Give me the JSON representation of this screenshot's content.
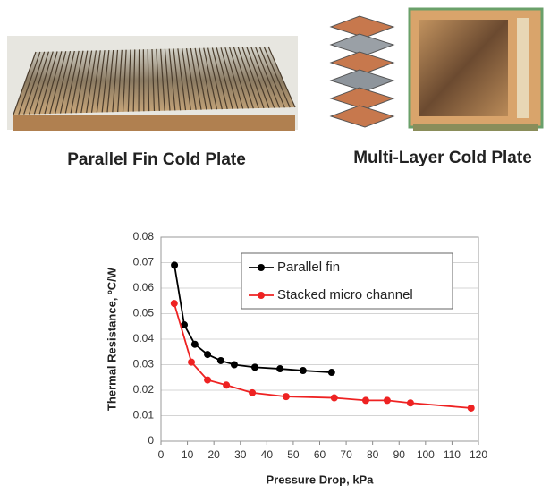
{
  "figures": [
    {
      "caption": "Parallel Fin Cold Plate"
    },
    {
      "caption": "Multi-Layer Cold Plate"
    }
  ],
  "chart_data": {
    "type": "line",
    "xlabel": "Pressure Drop, kPa",
    "ylabel": "Thermal Resistance, ºC/W",
    "xlim": [
      0,
      120
    ],
    "xticks": [
      0,
      10,
      20,
      30,
      40,
      50,
      60,
      70,
      80,
      90,
      100,
      110,
      120
    ],
    "ylim": [
      0,
      0.08
    ],
    "yticks": [
      0,
      0.01,
      0.02,
      0.03,
      0.04,
      0.05,
      0.06,
      0.07,
      0.08
    ],
    "grid": true,
    "legend": "top-right",
    "series": [
      {
        "name": "Parallel fin",
        "color": "#000000",
        "x": [
          5.1,
          8.8,
          12.8,
          17.6,
          22.6,
          27.7,
          35.5,
          45,
          53.7,
          64.5
        ],
        "values": [
          0.069,
          0.0456,
          0.038,
          0.034,
          0.0316,
          0.03,
          0.029,
          0.0284,
          0.0277,
          0.027
        ]
      },
      {
        "name": "Stacked micro channel",
        "color": "#ee2222",
        "x": [
          5,
          11.5,
          17.6,
          24.7,
          34.5,
          47.3,
          65.5,
          77.4,
          85.5,
          94.3,
          117.2
        ],
        "values": [
          0.054,
          0.031,
          0.024,
          0.022,
          0.019,
          0.0175,
          0.017,
          0.016,
          0.016,
          0.015,
          0.013
        ]
      }
    ]
  }
}
